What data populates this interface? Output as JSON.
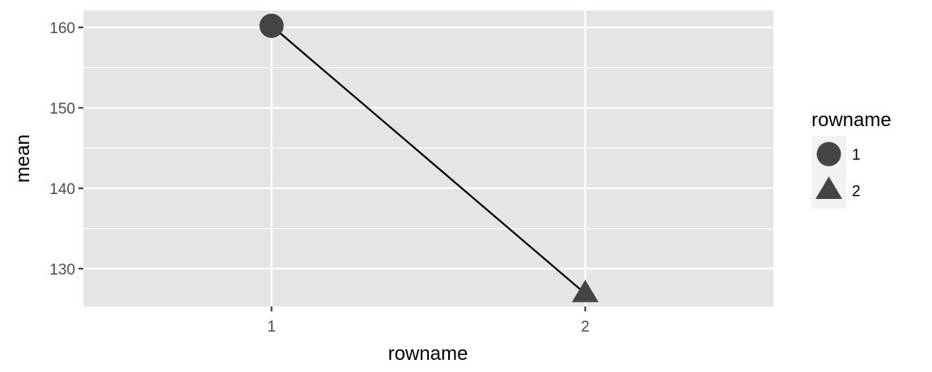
{
  "chart_data": {
    "type": "line",
    "xlabel": "rowname",
    "ylabel": "mean",
    "categories": [
      "1",
      "2"
    ],
    "values": [
      160.2,
      126.9
    ],
    "point_shapes": [
      "circle",
      "triangle"
    ],
    "ylim": [
      125.3,
      162.1
    ],
    "yticks": [
      130,
      140,
      150,
      160
    ],
    "grid": true,
    "legend": {
      "title": "rowname",
      "position": "right",
      "entries": [
        {
          "label": "1",
          "shape": "circle"
        },
        {
          "label": "2",
          "shape": "triangle"
        }
      ]
    },
    "colors": {
      "panel": "#e5e5e5",
      "grid": "#ffffff",
      "line": "#000000",
      "point": "#444444"
    }
  }
}
